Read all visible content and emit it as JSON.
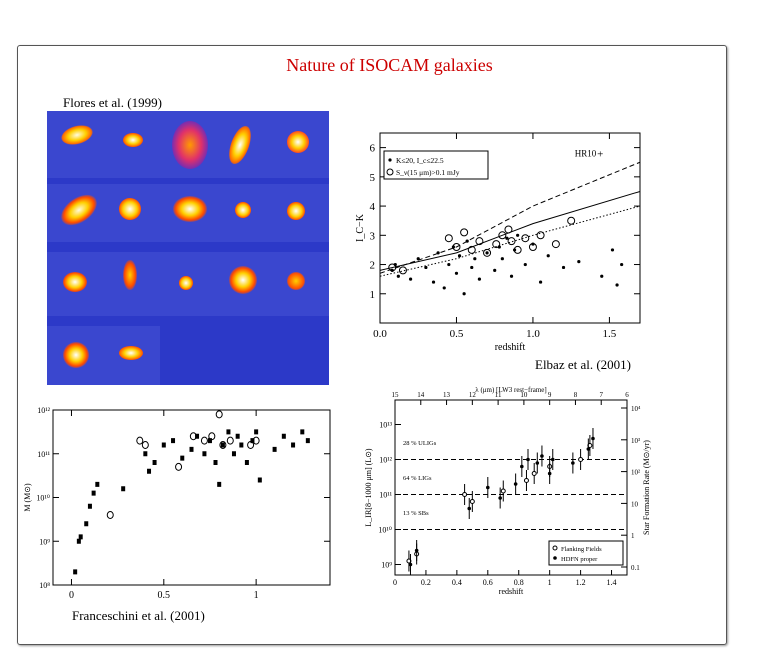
{
  "title": "Nature of ISOCAM galaxies",
  "captions": {
    "flores": "Flores et al. (1999)",
    "elbaz": "Elbaz et al. (2001)",
    "franceschini": "Franceschini et al. (2001)"
  },
  "colors": {
    "title": "#cc0000",
    "mosaic_bg": "#2c39c8"
  },
  "chart_data": [
    {
      "type": "scatter",
      "panel": "color-redshift",
      "xlabel": "redshift",
      "ylabel": "I_C−K",
      "xlim": [
        0,
        1.7
      ],
      "ylim": [
        0,
        6.5
      ],
      "xticks": [
        "0.0",
        "0.5",
        "1.0",
        "1.5"
      ],
      "yticks": [
        "1",
        "2",
        "3",
        "4",
        "5",
        "6"
      ],
      "legend": [
        "K≤20, I_c≤22.5",
        "S_ν(15 μm)>0.1 mJy"
      ],
      "annotation": "HR10",
      "annotation_point": [
        1.44,
        5.8
      ],
      "series": [
        {
          "name": "K≤20, I_c≤22.5",
          "points": [
            [
              0.08,
              1.8
            ],
            [
              0.1,
              2.0
            ],
            [
              0.12,
              1.6
            ],
            [
              0.2,
              1.5
            ],
            [
              0.25,
              2.2
            ],
            [
              0.3,
              1.9
            ],
            [
              0.35,
              1.4
            ],
            [
              0.38,
              2.4
            ],
            [
              0.42,
              1.2
            ],
            [
              0.45,
              2.0
            ],
            [
              0.48,
              2.6
            ],
            [
              0.5,
              1.7
            ],
            [
              0.52,
              2.3
            ],
            [
              0.55,
              1.0
            ],
            [
              0.57,
              2.8
            ],
            [
              0.6,
              1.9
            ],
            [
              0.62,
              2.2
            ],
            [
              0.65,
              1.5
            ],
            [
              0.7,
              2.4
            ],
            [
              0.75,
              1.8
            ],
            [
              0.78,
              2.6
            ],
            [
              0.8,
              2.2
            ],
            [
              0.83,
              2.9
            ],
            [
              0.86,
              1.6
            ],
            [
              0.88,
              2.5
            ],
            [
              0.9,
              3.0
            ],
            [
              0.95,
              2.0
            ],
            [
              1.0,
              2.7
            ],
            [
              1.05,
              1.4
            ],
            [
              1.1,
              2.3
            ],
            [
              1.2,
              1.9
            ],
            [
              1.3,
              2.1
            ],
            [
              1.45,
              1.6
            ],
            [
              1.52,
              2.5
            ],
            [
              1.55,
              1.3
            ],
            [
              1.58,
              2.0
            ]
          ]
        },
        {
          "name": "S_ν(15 μm)>0.1 mJy",
          "points": [
            [
              0.08,
              1.9
            ],
            [
              0.15,
              1.8
            ],
            [
              0.45,
              2.9
            ],
            [
              0.5,
              2.6
            ],
            [
              0.55,
              3.1
            ],
            [
              0.6,
              2.5
            ],
            [
              0.65,
              2.8
            ],
            [
              0.7,
              2.4
            ],
            [
              0.76,
              2.7
            ],
            [
              0.8,
              3.0
            ],
            [
              0.84,
              3.2
            ],
            [
              0.86,
              2.8
            ],
            [
              0.9,
              2.5
            ],
            [
              0.95,
              2.9
            ],
            [
              1.0,
              2.6
            ],
            [
              1.05,
              3.0
            ],
            [
              1.15,
              2.7
            ],
            [
              1.25,
              3.5
            ]
          ]
        }
      ],
      "model_curves": [
        {
          "style": "solid",
          "points": [
            [
              0,
              1.8
            ],
            [
              0.5,
              2.4
            ],
            [
              1.0,
              3.4
            ],
            [
              1.7,
              4.5
            ]
          ]
        },
        {
          "style": "dashed",
          "points": [
            [
              0,
              1.7
            ],
            [
              0.5,
              2.6
            ],
            [
              1.0,
              4.0
            ],
            [
              1.7,
              5.5
            ]
          ]
        },
        {
          "style": "dotted",
          "points": [
            [
              0,
              1.6
            ],
            [
              0.5,
              2.2
            ],
            [
              1.0,
              3.0
            ],
            [
              1.7,
              4.0
            ]
          ]
        }
      ]
    },
    {
      "type": "scatter",
      "panel": "mass-redshift",
      "xlabel": "",
      "ylabel": "M (M⊙)",
      "xlim": [
        -0.1,
        1.4
      ],
      "ylim": [
        8,
        12
      ],
      "log_y": true,
      "xticks": [
        "0",
        "0.5",
        "1"
      ],
      "yticks": [
        "10⁸",
        "10⁹",
        "10¹⁰",
        "10¹¹",
        "10¹²"
      ],
      "series": [
        {
          "name": "filled",
          "points": [
            [
              0.02,
              8.3
            ],
            [
              0.04,
              9.0
            ],
            [
              0.05,
              9.1
            ],
            [
              0.08,
              9.4
            ],
            [
              0.1,
              9.8
            ],
            [
              0.12,
              10.1
            ],
            [
              0.14,
              10.3
            ],
            [
              0.28,
              10.2
            ],
            [
              0.4,
              11.0
            ],
            [
              0.42,
              10.6
            ],
            [
              0.45,
              10.8
            ],
            [
              0.5,
              11.2
            ],
            [
              0.55,
              11.3
            ],
            [
              0.6,
              10.9
            ],
            [
              0.65,
              11.1
            ],
            [
              0.68,
              11.4
            ],
            [
              0.72,
              11.0
            ],
            [
              0.75,
              11.3
            ],
            [
              0.78,
              10.8
            ],
            [
              0.8,
              10.3
            ],
            [
              0.82,
              11.2
            ],
            [
              0.85,
              11.5
            ],
            [
              0.88,
              11.0
            ],
            [
              0.9,
              11.4
            ],
            [
              0.92,
              11.2
            ],
            [
              0.95,
              10.8
            ],
            [
              0.98,
              11.3
            ],
            [
              1.0,
              11.5
            ],
            [
              1.02,
              10.4
            ],
            [
              1.1,
              11.1
            ],
            [
              1.15,
              11.4
            ],
            [
              1.2,
              11.2
            ],
            [
              1.25,
              11.5
            ],
            [
              1.28,
              11.3
            ]
          ]
        },
        {
          "name": "open",
          "points": [
            [
              0.21,
              9.6
            ],
            [
              0.37,
              11.3
            ],
            [
              0.4,
              11.2
            ],
            [
              0.58,
              10.7
            ],
            [
              0.66,
              11.4
            ],
            [
              0.72,
              11.3
            ],
            [
              0.76,
              11.4
            ],
            [
              0.8,
              11.9
            ],
            [
              0.82,
              11.2
            ],
            [
              0.86,
              11.3
            ],
            [
              0.97,
              11.2
            ],
            [
              1.0,
              11.3
            ]
          ]
        }
      ]
    },
    {
      "type": "scatter",
      "panel": "IR-luminosity-redshift",
      "xlabel": "redshift",
      "ylabel": "L_IR[8−1000 μm] (L⊙)",
      "top_axis_label": "λ (μm) [LW3 rest−frame]",
      "right_axis_label": "Star Formation Rate (M⊙/yr)",
      "xlim": [
        0,
        1.5
      ],
      "ylim": [
        8.7,
        13.7
      ],
      "xticks": [
        "0",
        "0.2",
        "0.4",
        "0.6",
        "0.8",
        "1",
        "1.2",
        "1.4"
      ],
      "yticks": [
        "10⁹",
        "10¹⁰",
        "10¹¹",
        "10¹²",
        "10¹³"
      ],
      "top_ticks": [
        "15",
        "14",
        "13",
        "12",
        "11",
        "10",
        "9",
        "8",
        "7",
        "6"
      ],
      "right_ticks": [
        "0.1",
        "1",
        "10",
        "10²",
        "10³",
        "10⁴"
      ],
      "bands": [
        "28 % ULIGs",
        "64 % LIGs",
        "13 % SBs"
      ],
      "band_lines_log": [
        10,
        11,
        12
      ],
      "legend": [
        "Flanking Fields",
        "HDFN proper"
      ],
      "series": [
        {
          "name": "Flanking Fields",
          "points": [
            [
              0.09,
              9.1
            ],
            [
              0.14,
              9.3
            ],
            [
              0.45,
              11.0
            ],
            [
              0.5,
              10.8
            ],
            [
              0.7,
              11.1
            ],
            [
              0.85,
              11.4
            ],
            [
              0.9,
              11.6
            ],
            [
              1.0,
              11.8
            ],
            [
              1.2,
              12.0
            ],
            [
              1.26,
              12.4
            ]
          ]
        },
        {
          "name": "HDFN proper",
          "points": [
            [
              0.1,
              9.0
            ],
            [
              0.14,
              9.4
            ],
            [
              0.48,
              10.6
            ],
            [
              0.6,
              11.2
            ],
            [
              0.68,
              10.9
            ],
            [
              0.78,
              11.3
            ],
            [
              0.82,
              11.8
            ],
            [
              0.86,
              12.0
            ],
            [
              0.92,
              11.9
            ],
            [
              0.95,
              12.1
            ],
            [
              1.0,
              11.6
            ],
            [
              1.02,
              12.0
            ],
            [
              1.15,
              11.9
            ],
            [
              1.25,
              12.3
            ],
            [
              1.28,
              12.6
            ]
          ]
        }
      ]
    }
  ]
}
